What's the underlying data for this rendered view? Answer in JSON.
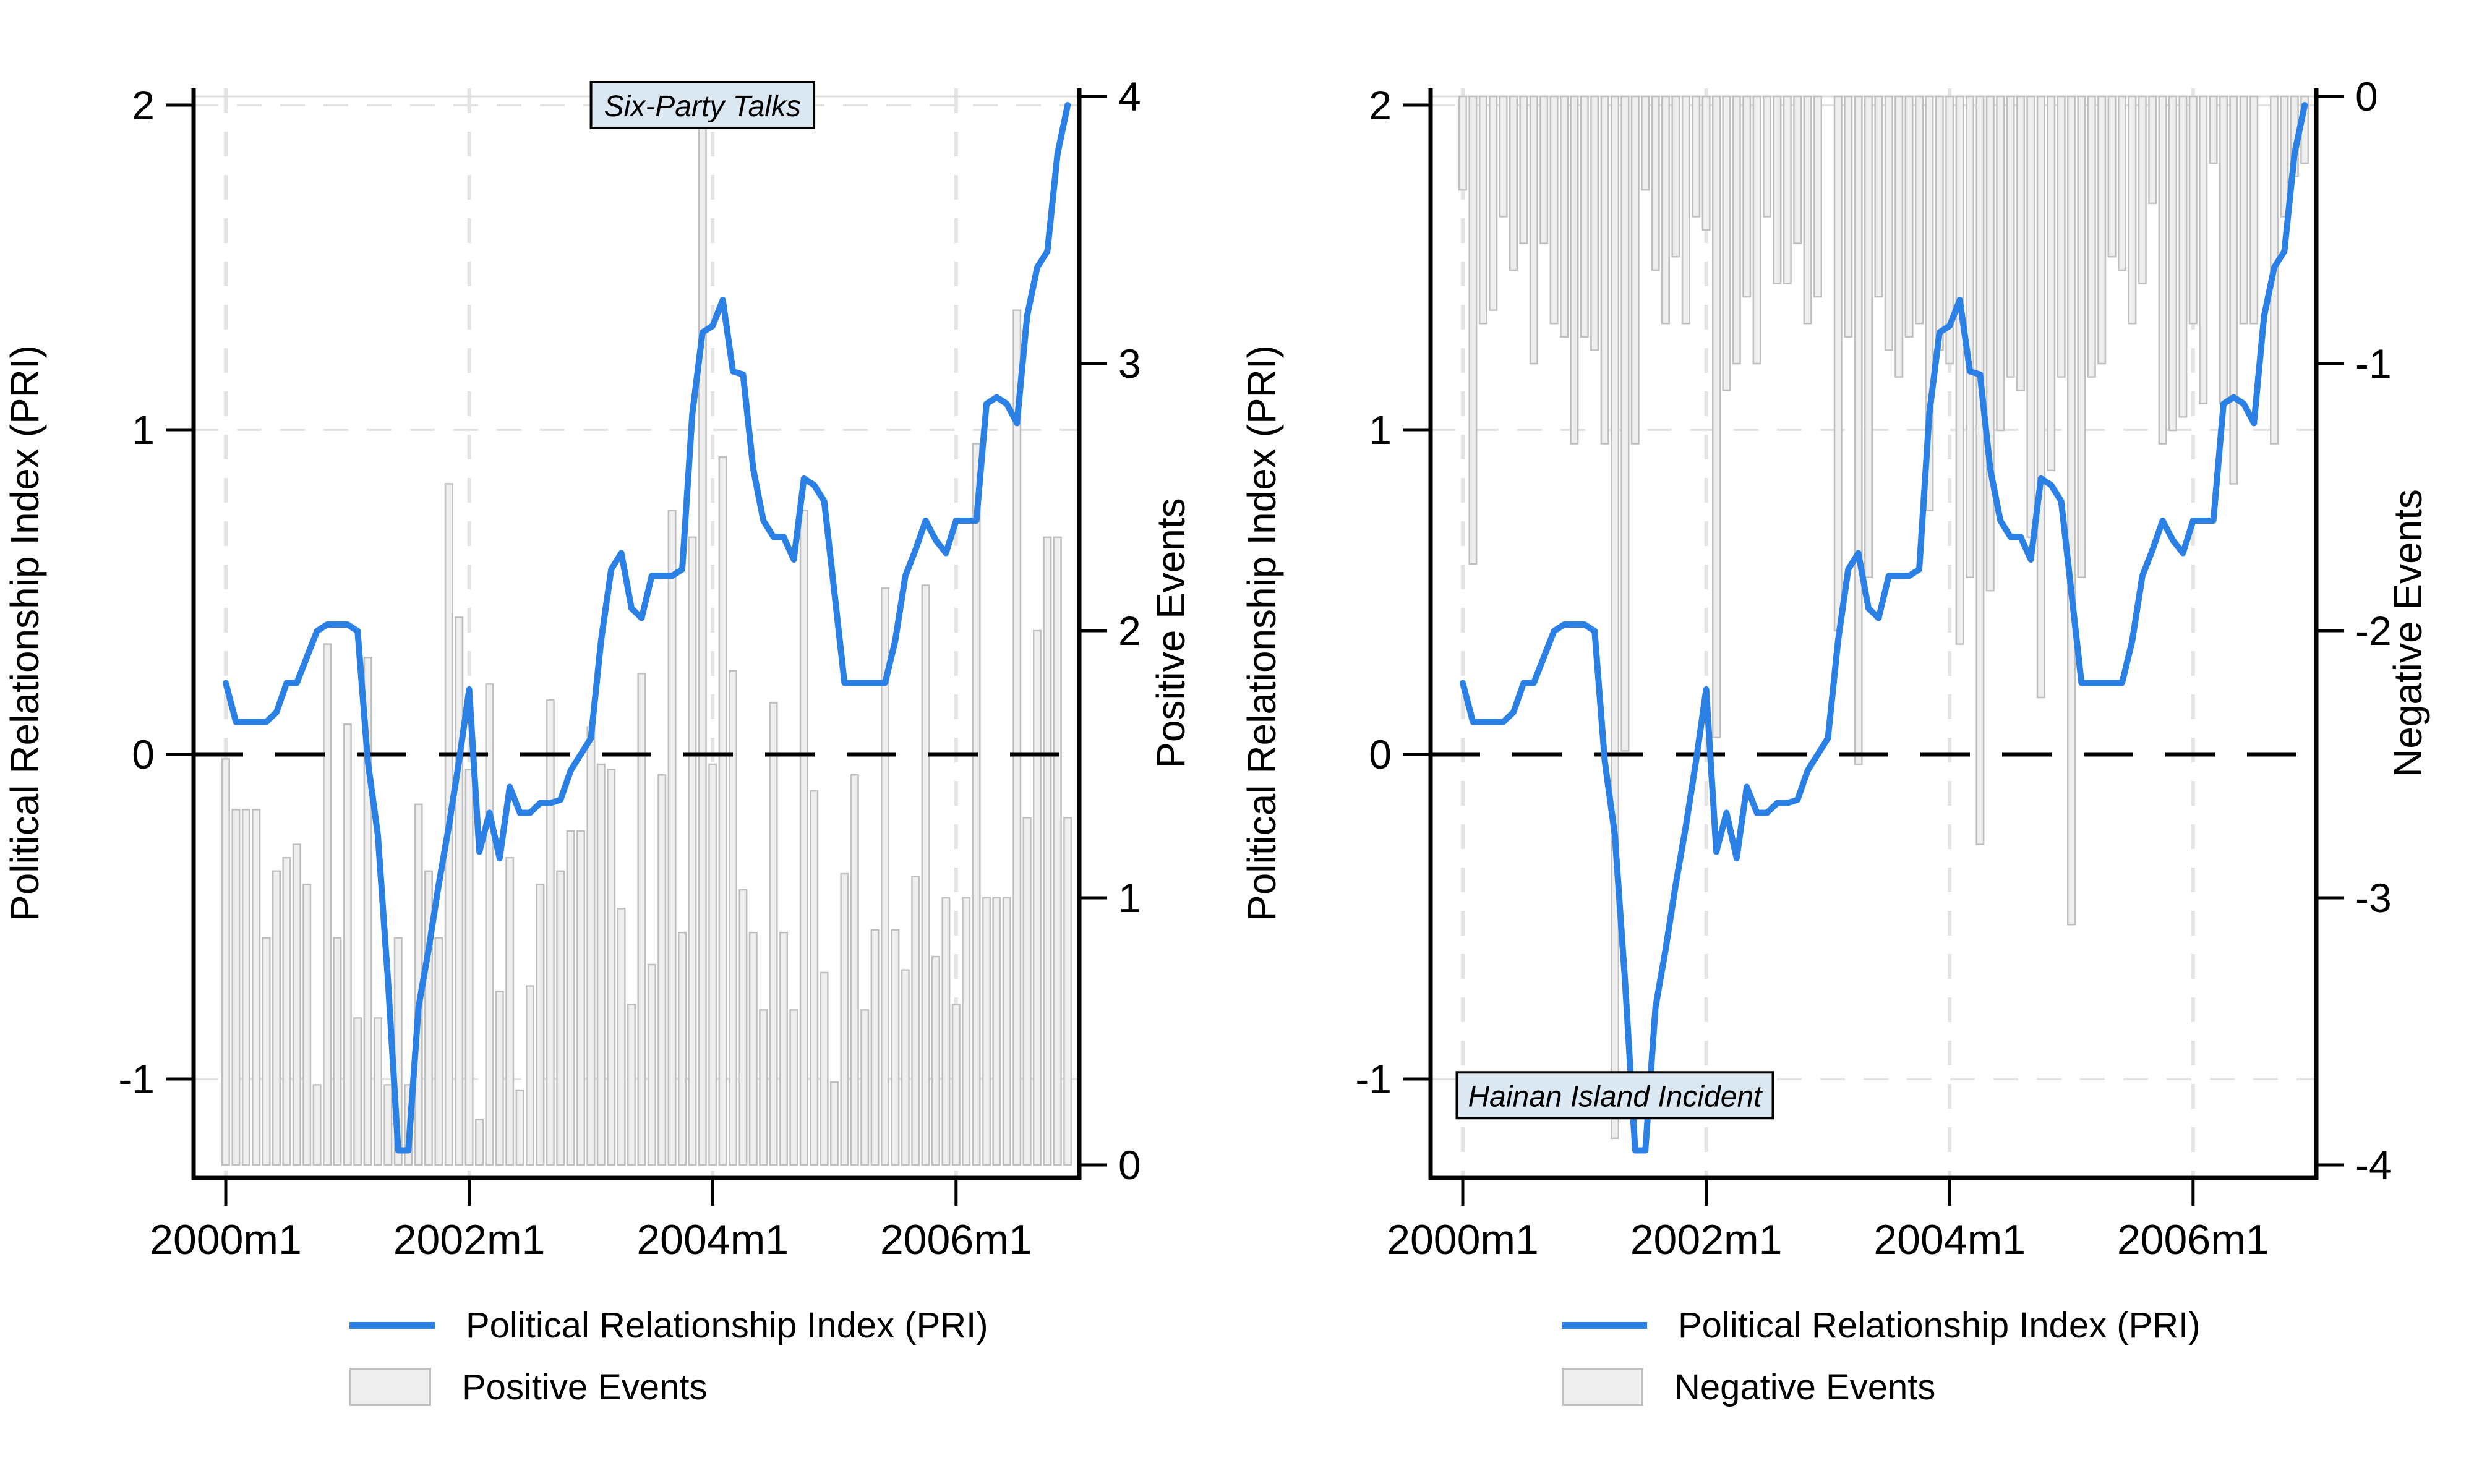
{
  "figure": {
    "background": "#ffffff"
  },
  "colors": {
    "pri_line": "#2b80e6",
    "bar_fill": "#efefef",
    "bar_stroke": "#bfbfbf",
    "grid": "#e4e4e4",
    "baseline_gray": "#dcdcdc",
    "zero_line": "#000000",
    "axis": "#000000",
    "annotation_bg": "#dbe7f1"
  },
  "chart_data": [
    {
      "type": "line+bar",
      "title": "",
      "xlabel": "",
      "ylabel_left": "Political Relationship Index (PRI)",
      "ylabel_right": "Positive Events",
      "x_tick_labels": [
        "2000m1",
        "2002m1",
        "2004m1",
        "2006m1"
      ],
      "yticks_left": [
        -1,
        0,
        1,
        2
      ],
      "yticks_right": [
        0,
        1,
        2,
        3,
        4
      ],
      "ylim_left": [
        -1.3,
        2.05
      ],
      "ylim_right": [
        0,
        4.05
      ],
      "zero_dashed_line": 0,
      "annotation": {
        "text": "Six-Party Talks",
        "month": "2003m12",
        "y_pri": 2.0
      },
      "months": [
        "2000m1",
        "2000m2",
        "2000m3",
        "2000m4",
        "2000m5",
        "2000m6",
        "2000m7",
        "2000m8",
        "2000m9",
        "2000m10",
        "2000m11",
        "2000m12",
        "2001m1",
        "2001m2",
        "2001m3",
        "2001m4",
        "2001m5",
        "2001m6",
        "2001m7",
        "2001m8",
        "2001m9",
        "2001m10",
        "2001m11",
        "2001m12",
        "2002m1",
        "2002m2",
        "2002m3",
        "2002m4",
        "2002m5",
        "2002m6",
        "2002m7",
        "2002m8",
        "2002m9",
        "2002m10",
        "2002m11",
        "2002m12",
        "2003m1",
        "2003m2",
        "2003m3",
        "2003m4",
        "2003m5",
        "2003m6",
        "2003m7",
        "2003m8",
        "2003m9",
        "2003m10",
        "2003m11",
        "2003m12",
        "2004m1",
        "2004m2",
        "2004m3",
        "2004m4",
        "2004m5",
        "2004m6",
        "2004m7",
        "2004m8",
        "2004m9",
        "2004m10",
        "2004m11",
        "2004m12",
        "2005m1",
        "2005m2",
        "2005m3",
        "2005m4",
        "2005m5",
        "2005m6",
        "2005m7",
        "2005m8",
        "2005m9",
        "2005m10",
        "2005m11",
        "2005m12",
        "2006m1",
        "2006m2",
        "2006m3",
        "2006m4",
        "2006m5",
        "2006m6",
        "2006m7",
        "2006m8",
        "2006m9",
        "2006m10",
        "2006m11",
        "2006m12"
      ],
      "series": [
        {
          "name": "Political Relationship Index (PRI)",
          "type": "line",
          "axis": "left",
          "color": "#2b80e6",
          "values": [
            0.22,
            0.1,
            0.1,
            0.1,
            0.1,
            0.13,
            0.22,
            0.22,
            0.3,
            0.38,
            0.4,
            0.4,
            0.4,
            0.38,
            -0.02,
            -0.25,
            -0.7,
            -1.22,
            -1.22,
            -0.78,
            -0.6,
            -0.4,
            -0.22,
            -0.02,
            0.2,
            -0.3,
            -0.18,
            -0.32,
            -0.1,
            -0.18,
            -0.18,
            -0.15,
            -0.15,
            -0.14,
            -0.05,
            0.0,
            0.05,
            0.35,
            0.57,
            0.62,
            0.45,
            0.42,
            0.55,
            0.55,
            0.55,
            0.57,
            1.05,
            1.3,
            1.32,
            1.4,
            1.18,
            1.17,
            0.88,
            0.72,
            0.67,
            0.67,
            0.6,
            0.85,
            0.83,
            0.78,
            0.5,
            0.22,
            0.22,
            0.22,
            0.22,
            0.22,
            0.35,
            0.55,
            0.63,
            0.72,
            0.66,
            0.62,
            0.72,
            0.72,
            0.72,
            1.08,
            1.1,
            1.08,
            1.02,
            1.35,
            1.5,
            1.55,
            1.85,
            2.0
          ]
        },
        {
          "name": "Positive Events",
          "type": "bar",
          "axis": "right",
          "fill": "#efefef",
          "stroke": "#bfbfbf",
          "values": [
            1.52,
            1.33,
            1.33,
            1.33,
            0.85,
            1.1,
            1.15,
            1.2,
            1.05,
            0.3,
            1.95,
            0.85,
            1.65,
            0.55,
            1.9,
            0.55,
            0.3,
            0.85,
            0.3,
            1.35,
            1.1,
            0.85,
            2.55,
            2.05,
            1.48,
            0.17,
            1.8,
            0.65,
            1.15,
            0.28,
            0.67,
            1.05,
            1.74,
            1.1,
            1.25,
            1.25,
            1.64,
            1.5,
            1.48,
            0.96,
            0.6,
            1.84,
            0.75,
            1.46,
            2.45,
            0.87,
            2.35,
            3.95,
            1.5,
            2.65,
            1.85,
            1.03,
            0.87,
            0.58,
            1.73,
            0.87,
            0.58,
            2.45,
            1.4,
            0.72,
            0.31,
            1.09,
            1.46,
            0.58,
            0.88,
            2.16,
            0.88,
            0.73,
            1.08,
            2.17,
            0.78,
            1.0,
            0.6,
            1.0,
            2.7,
            1.0,
            1.0,
            1.0,
            3.2,
            1.3,
            2.0,
            2.35,
            2.35,
            1.3
          ]
        }
      ]
    },
    {
      "type": "line+bar",
      "title": "",
      "xlabel": "",
      "ylabel_left": "Political Relationship Index (PRI)",
      "ylabel_right": "Negative Events",
      "x_tick_labels": [
        "2000m1",
        "2002m1",
        "2004m1",
        "2006m1"
      ],
      "yticks_left": [
        -1,
        0,
        1,
        2
      ],
      "yticks_right": [
        0,
        -1,
        -2,
        -3,
        -4
      ],
      "ylim_left": [
        -1.3,
        2.05
      ],
      "ylim_right": [
        -4.05,
        0
      ],
      "zero_dashed_line": 0,
      "annotation": {
        "text": "Hainan Island Incident",
        "month": "2001m4",
        "y_pri": -1.05
      },
      "months": [
        "2000m1",
        "2000m2",
        "2000m3",
        "2000m4",
        "2000m5",
        "2000m6",
        "2000m7",
        "2000m8",
        "2000m9",
        "2000m10",
        "2000m11",
        "2000m12",
        "2001m1",
        "2001m2",
        "2001m3",
        "2001m4",
        "2001m5",
        "2001m6",
        "2001m7",
        "2001m8",
        "2001m9",
        "2001m10",
        "2001m11",
        "2001m12",
        "2002m1",
        "2002m2",
        "2002m3",
        "2002m4",
        "2002m5",
        "2002m6",
        "2002m7",
        "2002m8",
        "2002m9",
        "2002m10",
        "2002m11",
        "2002m12",
        "2003m1",
        "2003m2",
        "2003m3",
        "2003m4",
        "2003m5",
        "2003m6",
        "2003m7",
        "2003m8",
        "2003m9",
        "2003m10",
        "2003m11",
        "2003m12",
        "2004m1",
        "2004m2",
        "2004m3",
        "2004m4",
        "2004m5",
        "2004m6",
        "2004m7",
        "2004m8",
        "2004m9",
        "2004m10",
        "2004m11",
        "2004m12",
        "2005m1",
        "2005m2",
        "2005m3",
        "2005m4",
        "2005m5",
        "2005m6",
        "2005m7",
        "2005m8",
        "2005m9",
        "2005m10",
        "2005m11",
        "2005m12",
        "2006m1",
        "2006m2",
        "2006m3",
        "2006m4",
        "2006m5",
        "2006m6",
        "2006m7",
        "2006m8",
        "2006m9",
        "2006m10",
        "2006m11",
        "2006m12"
      ],
      "series": [
        {
          "name": "Political Relationship Index (PRI)",
          "type": "line",
          "axis": "left",
          "color": "#2b80e6",
          "values": [
            0.22,
            0.1,
            0.1,
            0.1,
            0.1,
            0.13,
            0.22,
            0.22,
            0.3,
            0.38,
            0.4,
            0.4,
            0.4,
            0.38,
            -0.02,
            -0.25,
            -0.7,
            -1.22,
            -1.22,
            -0.78,
            -0.6,
            -0.4,
            -0.22,
            -0.02,
            0.2,
            -0.3,
            -0.18,
            -0.32,
            -0.1,
            -0.18,
            -0.18,
            -0.15,
            -0.15,
            -0.14,
            -0.05,
            0.0,
            0.05,
            0.35,
            0.57,
            0.62,
            0.45,
            0.42,
            0.55,
            0.55,
            0.55,
            0.57,
            1.05,
            1.3,
            1.32,
            1.4,
            1.18,
            1.17,
            0.88,
            0.72,
            0.67,
            0.67,
            0.6,
            0.85,
            0.83,
            0.78,
            0.5,
            0.22,
            0.22,
            0.22,
            0.22,
            0.22,
            0.35,
            0.55,
            0.63,
            0.72,
            0.66,
            0.62,
            0.72,
            0.72,
            0.72,
            1.08,
            1.1,
            1.08,
            1.02,
            1.35,
            1.5,
            1.55,
            1.85,
            2.0
          ]
        },
        {
          "name": "Negative Events",
          "type": "bar",
          "axis": "right",
          "fill": "#efefef",
          "stroke": "#bfbfbf",
          "values": [
            -0.35,
            -1.75,
            -0.85,
            -0.8,
            -0.45,
            -0.65,
            -0.55,
            -1.0,
            -0.55,
            -0.85,
            -0.9,
            -1.3,
            -0.9,
            -0.95,
            -1.3,
            -3.9,
            -2.45,
            -1.3,
            -0.35,
            -0.65,
            -0.85,
            -0.6,
            -0.85,
            -0.45,
            -0.5,
            -2.4,
            -1.1,
            -1.0,
            -0.75,
            -1.0,
            -0.45,
            -0.7,
            -0.7,
            -0.55,
            -0.85,
            -0.75,
            0,
            -2.0,
            -0.9,
            -2.5,
            -1.8,
            -0.75,
            -0.95,
            -1.05,
            -0.9,
            -0.85,
            -1.55,
            -0.95,
            -1.0,
            -2.05,
            -1.8,
            -2.8,
            -1.85,
            -1.25,
            -1.05,
            -1.1,
            -1.65,
            -2.25,
            -1.4,
            -1.05,
            -3.1,
            -1.8,
            -1.05,
            -1.0,
            -0.6,
            -0.65,
            -0.85,
            -0.7,
            -0.4,
            -1.3,
            -1.25,
            -1.2,
            -0.85,
            -1.15,
            -0.25,
            -1.15,
            -1.45,
            -0.85,
            -0.85,
            0,
            -1.3,
            -0.45,
            -0.3,
            -0.25
          ]
        }
      ]
    }
  ],
  "legend_left": {
    "items": [
      {
        "label": "Political Relationship Index (PRI)",
        "swatch": "line"
      },
      {
        "label": "Positive Events",
        "swatch": "rect"
      }
    ]
  },
  "legend_right": {
    "items": [
      {
        "label": "Political Relationship Index (PRI)",
        "swatch": "line"
      },
      {
        "label": "Negative Events",
        "swatch": "rect"
      }
    ]
  }
}
